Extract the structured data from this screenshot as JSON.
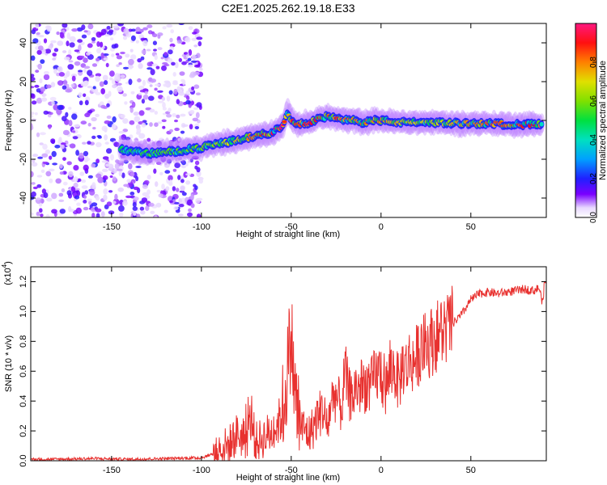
{
  "chart_data": [
    {
      "type": "heatmap",
      "title": "C2E1.2025.262.19.18.E33",
      "xlabel": "Height of straight line (km)",
      "ylabel": "Frequency (Hz)",
      "xlim": [
        -195,
        92
      ],
      "ylim": [
        -50,
        50
      ],
      "x_ticks": [
        -150,
        -100,
        -50,
        0,
        50
      ],
      "y_ticks": [
        -40,
        -20,
        0,
        20,
        40
      ],
      "colorbar": {
        "label": "Normalized spectral amplitude",
        "range": [
          0.0,
          1.0
        ],
        "ticks": [
          0.0,
          0.2,
          0.4,
          0.6,
          0.8
        ]
      },
      "ridge": {
        "x": [
          -145,
          -130,
          -115,
          -100,
          -90,
          -80,
          -70,
          -60,
          -55,
          -52,
          -50,
          -45,
          -40,
          -35,
          -30,
          -25,
          -20,
          -15,
          -10,
          -5,
          0,
          10,
          20,
          30,
          40,
          50,
          60,
          70,
          80,
          90
        ],
        "y": [
          -15,
          -17,
          -16,
          -14,
          -12,
          -10,
          -8,
          -6,
          -3,
          5,
          0,
          -2,
          -1,
          1,
          2,
          1,
          0,
          0,
          -1,
          0,
          0,
          -1,
          -1,
          -1,
          -1.5,
          -1.5,
          -1.5,
          -2,
          -2,
          -2
        ],
        "amplitude": [
          0.5,
          0.55,
          0.6,
          0.6,
          0.65,
          0.75,
          0.85,
          0.95,
          1.0,
          0.7,
          0.9,
          0.85,
          0.95,
          0.9,
          0.85,
          0.9,
          0.85,
          0.8,
          0.85,
          0.8,
          0.8,
          0.75,
          0.7,
          0.7,
          0.75,
          0.8,
          0.85,
          0.85,
          0.9,
          0.9
        ]
      },
      "noise_region_x": [
        -195,
        -100
      ]
    },
    {
      "type": "line",
      "xlabel": "Height of straight line (km)",
      "ylabel": "SNR (10 * v/v)",
      "y_multiplier": "(x10",
      "y_multiplier_exp": "4",
      "xlim": [
        -195,
        92
      ],
      "ylim": [
        0,
        1.3
      ],
      "x_ticks": [
        -150,
        -100,
        -50,
        0,
        50
      ],
      "y_ticks": [
        0.0,
        0.2,
        0.4,
        0.6,
        0.8,
        1.0,
        1.2
      ],
      "series": [
        {
          "color": "#e8312f",
          "x": [
            -195,
            -180,
            -160,
            -140,
            -120,
            -100,
            -95,
            -90,
            -85,
            -80,
            -75,
            -72,
            -70,
            -65,
            -60,
            -55,
            -52,
            -50,
            -48,
            -46,
            -44,
            -42,
            -40,
            -38,
            -36,
            -34,
            -32,
            -30,
            -28,
            -26,
            -24,
            -22,
            -20,
            -18,
            -16,
            -14,
            -12,
            -10,
            -8,
            -6,
            -4,
            -2,
            0,
            2,
            4,
            6,
            8,
            10,
            12,
            14,
            16,
            18,
            20,
            22,
            24,
            26,
            28,
            30,
            32,
            34,
            36,
            38,
            40,
            45,
            50,
            55,
            60,
            65,
            70,
            75,
            80,
            85,
            88,
            90,
            91
          ],
          "y": [
            0.01,
            0.01,
            0.015,
            0.01,
            0.015,
            0.02,
            0.04,
            0.08,
            0.1,
            0.18,
            0.14,
            0.3,
            0.12,
            0.16,
            0.2,
            0.3,
            0.62,
            0.85,
            0.45,
            0.3,
            0.22,
            0.2,
            0.18,
            0.22,
            0.28,
            0.32,
            0.35,
            0.2,
            0.38,
            0.45,
            0.4,
            0.35,
            0.6,
            0.45,
            0.42,
            0.5,
            0.48,
            0.5,
            0.52,
            0.48,
            0.55,
            0.58,
            0.6,
            0.45,
            0.55,
            0.62,
            0.6,
            0.5,
            0.65,
            0.62,
            0.68,
            0.66,
            0.7,
            0.75,
            0.76,
            0.78,
            0.8,
            0.82,
            0.85,
            0.87,
            0.88,
            0.9,
            0.92,
            0.98,
            1.08,
            1.12,
            1.13,
            1.12,
            1.13,
            1.14,
            1.15,
            1.14,
            1.16,
            1.05,
            1.2
          ]
        }
      ]
    }
  ]
}
